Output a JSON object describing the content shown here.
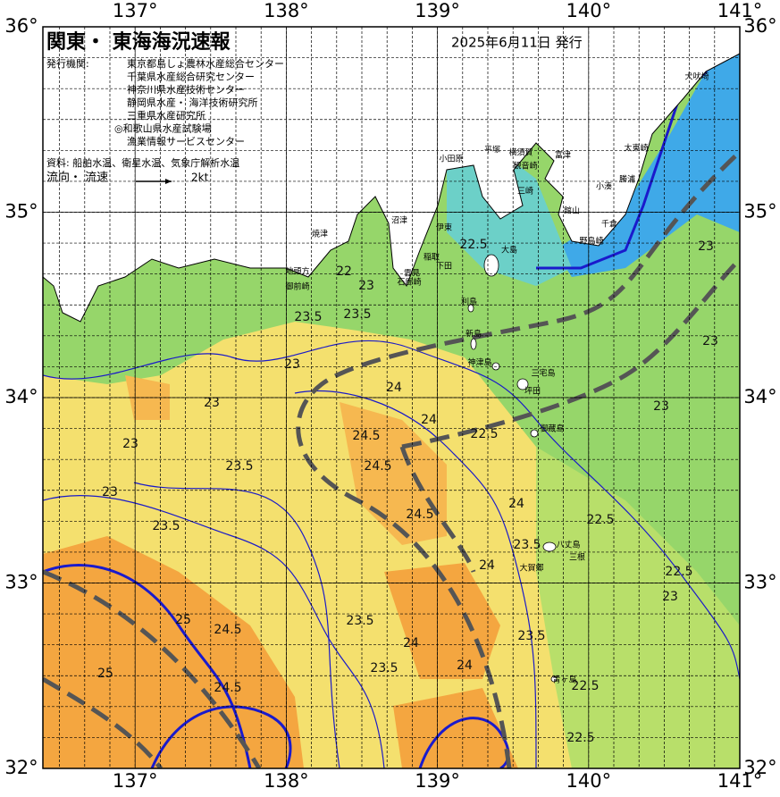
{
  "map": {
    "title": "関東・ 東海海況速報",
    "issue_date": "2025年6月11日 発行",
    "issuer_label": "発行機関:",
    "issuers": [
      "東京都島しょ農林水産総合センター",
      "千葉県水産総合研究センター",
      "神奈川県水産技術センター",
      "静岡県水産・ 海洋技術研究所",
      "三重県水産研究所",
      "◎和歌山県水産試験場",
      "漁業情報サービスセンター"
    ],
    "sources": "資料: 船舶水温、衛星水温、気象庁解析水温",
    "flow_label": "流向・ 流速",
    "flow_scale": "2kt",
    "lon_ticks": [
      {
        "value": 137,
        "label": "137°"
      },
      {
        "value": 138,
        "label": "138°"
      },
      {
        "value": 139,
        "label": "139°"
      },
      {
        "value": 140,
        "label": "140°"
      },
      {
        "value": 141,
        "label": "141°"
      }
    ],
    "lat_ticks": [
      {
        "value": 36,
        "label": "36°"
      },
      {
        "value": 35,
        "label": "35°"
      },
      {
        "value": 34,
        "label": "34°"
      },
      {
        "value": 33,
        "label": "33°"
      },
      {
        "value": 32,
        "label": "32°"
      }
    ],
    "places": [
      "犬吠埼",
      "太東崎",
      "勝浦",
      "小湊",
      "千倉",
      "野島崎",
      "館山",
      "富津",
      "横須賀",
      "観音崎",
      "平塚",
      "小田原",
      "三崎",
      "焼津",
      "沼津",
      "伊東",
      "大島",
      "稲取",
      "下田",
      "雲見",
      "石廊崎",
      "地頭方",
      "御前崎",
      "利島",
      "新島",
      "神津島",
      "三宅島",
      "坪田",
      "御蔵島",
      "八丈島",
      "三根",
      "大賀郷",
      "青ヶ島"
    ],
    "contour_labels": [
      "22",
      "22.5",
      "23",
      "23.5",
      "24",
      "24.5",
      "25",
      "23.5",
      "23",
      "24",
      "24.5",
      "23.5",
      "23",
      "22.5",
      "23",
      "24",
      "23.5",
      "24.5",
      "23",
      "22.5",
      "22.5",
      "23",
      "23.5",
      "24",
      "24.5",
      "25",
      "23.5",
      "24",
      "22.5",
      "23",
      "23.5",
      "24.5",
      "23",
      "24",
      "23.5",
      "22.5",
      "23"
    ]
  }
}
